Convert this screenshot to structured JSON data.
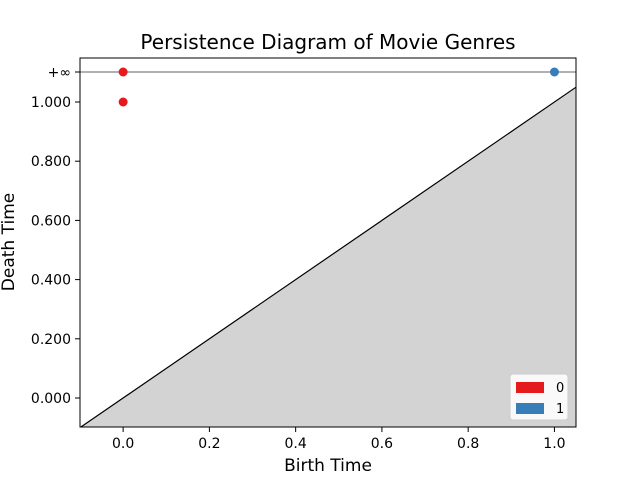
{
  "chart_data": {
    "type": "scatter",
    "title": "Persistence Diagram of Movie Genres",
    "xlabel": "Birth Time",
    "ylabel": "Death Time",
    "xlim": [
      -0.1,
      1.05
    ],
    "ylim": [
      -0.1,
      1.05
    ],
    "infinity_value": 1.1,
    "infinity_label": "+∞",
    "x_ticks": [
      {
        "value": 0.0,
        "label": "0.0"
      },
      {
        "value": 0.2,
        "label": "0.2"
      },
      {
        "value": 0.4,
        "label": "0.4"
      },
      {
        "value": 0.6,
        "label": "0.6"
      },
      {
        "value": 0.8,
        "label": "0.8"
      },
      {
        "value": 1.0,
        "label": "1.0"
      }
    ],
    "y_ticks": [
      {
        "value": 0.0,
        "label": "0.000"
      },
      {
        "value": 0.2,
        "label": "0.200"
      },
      {
        "value": 0.4,
        "label": "0.400"
      },
      {
        "value": 0.6,
        "label": "0.600"
      },
      {
        "value": 0.8,
        "label": "0.800"
      },
      {
        "value": 1.0,
        "label": "1.000"
      }
    ],
    "series": [
      {
        "name": "0",
        "color": "#e41a1c",
        "points": [
          {
            "x": 0.0,
            "y": 1.0
          },
          {
            "x": 0.0,
            "y": 1.1
          }
        ]
      },
      {
        "name": "1",
        "color": "#377eb8",
        "points": [
          {
            "x": 1.0,
            "y": 1.1
          }
        ]
      }
    ],
    "diagonal_fill_color": "#d3d3d3",
    "infinity_line_color": "#808080",
    "legend_position": "lower-right",
    "grid": false
  }
}
